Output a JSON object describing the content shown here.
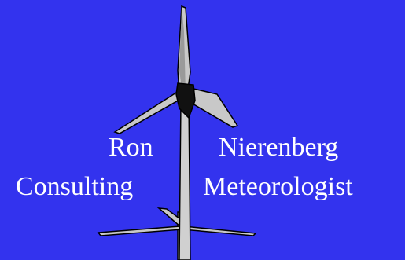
{
  "text": {
    "left_line1": "Ron",
    "left_line2": "Consulting",
    "right_line1": "Nierenberg",
    "right_line2": "Meteorologist"
  },
  "colors": {
    "background": "#3333ee",
    "text": "#ffffff",
    "turbine_fill": "#c8c8c8",
    "turbine_shadow": "#8a8a8a",
    "outline": "#000000"
  },
  "icons": {
    "main": "wind-turbine-icon",
    "secondary": "wind-turbine-small-icon"
  }
}
